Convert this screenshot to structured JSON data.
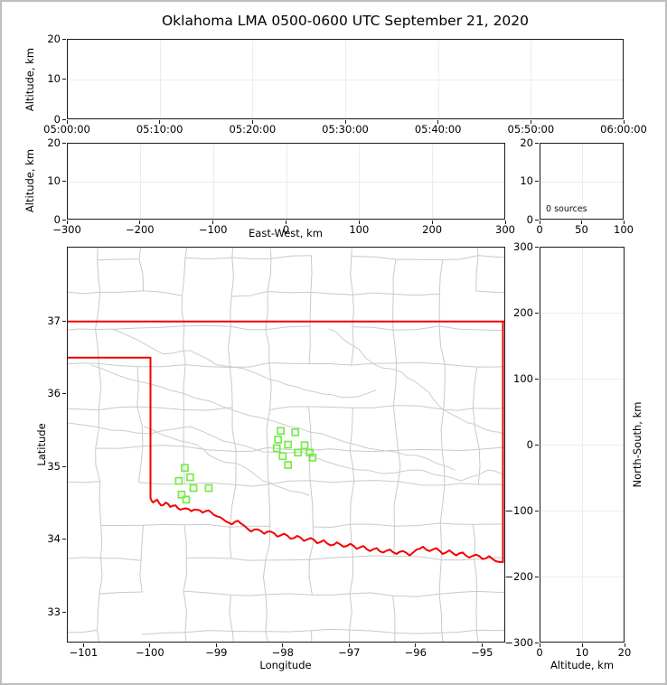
{
  "title": "Oklahoma LMA 0500-0600 UTC September 21, 2020",
  "colors": {
    "station_green": "#74ec45",
    "state_border_red": "#f10000",
    "county_gray": "#c9c9c9",
    "river_gray": "#cccccc",
    "gridline_gray": "#ececec",
    "frame_gray": "#bfbfbf"
  },
  "panels": {
    "time_height": {
      "ylabel": "Altitude, km",
      "yticks": [
        "20",
        "10",
        "0"
      ],
      "xticks": [
        "05:00:00",
        "05:10:00",
        "05:20:00",
        "05:30:00",
        "05:40:00",
        "05:50:00",
        "06:00:00"
      ]
    },
    "ew_height": {
      "ylabel": "Altitude, km",
      "xlabel": "East-West, km",
      "yticks": [
        "20",
        "10",
        "0"
      ],
      "xticks": [
        "−300",
        "−200",
        "−100",
        "0",
        "100",
        "200",
        "300"
      ]
    },
    "sources": {
      "yticks": [
        "20",
        "10",
        "0"
      ],
      "xticks": [
        "0",
        "50",
        "100"
      ],
      "annotation": "0 sources"
    },
    "plan": {
      "ylabel": "Latitude",
      "xlabel": "Longitude",
      "yticks": [
        "37",
        "36",
        "35",
        "34",
        "33"
      ],
      "xticks": [
        "−101",
        "−100",
        "−99",
        "−98",
        "−97",
        "−96",
        "−95"
      ]
    },
    "ns_height": {
      "xlabel": "Altitude, km",
      "ylabel_right": "North-South, km",
      "yticks": [
        "300",
        "200",
        "100",
        "0",
        "−100",
        "−200",
        "−300"
      ],
      "xticks": [
        "0",
        "10",
        "20"
      ]
    }
  },
  "chart_data": [
    {
      "id": "altitude-vs-time",
      "type": "scatter",
      "ylabel": "Altitude, km",
      "xlim": [
        "05:00:00",
        "06:00:00"
      ],
      "ylim": [
        0,
        20
      ],
      "xtick_values": [
        "05:00:00",
        "05:10:00",
        "05:20:00",
        "05:30:00",
        "05:40:00",
        "05:50:00",
        "06:00:00"
      ],
      "ytick_values": [
        0,
        10,
        20
      ],
      "points": [],
      "grid": true
    },
    {
      "id": "altitude-vs-east-west",
      "type": "scatter",
      "xlabel": "East-West, km",
      "ylabel": "Altitude, km",
      "xlim": [
        -300,
        300
      ],
      "ylim": [
        0,
        20
      ],
      "xtick_values": [
        -300,
        -200,
        -100,
        0,
        100,
        200,
        300
      ],
      "ytick_values": [
        0,
        10,
        20
      ],
      "points": [],
      "grid": true
    },
    {
      "id": "source-count-panel",
      "type": "scatter",
      "xlim": [
        0,
        100
      ],
      "ylim": [
        0,
        20
      ],
      "xtick_values": [
        0,
        50,
        100
      ],
      "ytick_values": [
        0,
        10,
        20
      ],
      "annotation": "0 sources",
      "points": [],
      "grid": true
    },
    {
      "id": "plan-view-map",
      "type": "scatter",
      "xlabel": "Longitude",
      "ylabel": "Latitude",
      "xlim": [
        -101.25,
        -94.65
      ],
      "ylim": [
        32.58,
        38.02
      ],
      "xtick_values": [
        -101,
        -100,
        -99,
        -98,
        -97,
        -96,
        -95
      ],
      "ytick_values": [
        33,
        34,
        35,
        36,
        37
      ],
      "grid": false,
      "stations_lon_lat": [
        [
          -98.03,
          35.49
        ],
        [
          -97.81,
          35.47
        ],
        [
          -98.07,
          35.37
        ],
        [
          -97.92,
          35.3
        ],
        [
          -98.09,
          35.25
        ],
        [
          -97.67,
          35.29
        ],
        [
          -97.77,
          35.19
        ],
        [
          -97.59,
          35.19
        ],
        [
          -98.0,
          35.14
        ],
        [
          -97.55,
          35.12
        ],
        [
          -97.92,
          35.02
        ],
        [
          -99.48,
          34.98
        ],
        [
          -99.4,
          34.85
        ],
        [
          -99.57,
          34.8
        ],
        [
          -99.35,
          34.7
        ],
        [
          -99.12,
          34.7
        ],
        [
          -99.53,
          34.61
        ],
        [
          -99.46,
          34.54
        ]
      ],
      "oklahoma_border": {
        "north_border": [
          [
            -101.25,
            37.0
          ],
          [
            -94.65,
            37.0
          ]
        ],
        "east_clip_edge": [
          [
            -94.67,
            37.0
          ],
          [
            -94.67,
            33.68
          ]
        ],
        "panhandle": [
          [
            -101.25,
            36.5
          ],
          [
            -100.0,
            36.5
          ],
          [
            -100.0,
            34.56
          ]
        ],
        "red_river": [
          [
            -100.0,
            34.56
          ],
          [
            -99.96,
            34.5
          ],
          [
            -99.9,
            34.54
          ],
          [
            -99.84,
            34.46
          ],
          [
            -99.77,
            34.5
          ],
          [
            -99.7,
            34.44
          ],
          [
            -99.62,
            34.46
          ],
          [
            -99.55,
            34.4
          ],
          [
            -99.47,
            34.42
          ],
          [
            -99.38,
            34.38
          ],
          [
            -99.3,
            34.4
          ],
          [
            -99.21,
            34.36
          ],
          [
            -99.12,
            34.39
          ],
          [
            -99.04,
            34.33
          ],
          [
            -98.95,
            34.3
          ],
          [
            -98.86,
            34.24
          ],
          [
            -98.77,
            34.2
          ],
          [
            -98.68,
            34.25
          ],
          [
            -98.58,
            34.18
          ],
          [
            -98.48,
            34.1
          ],
          [
            -98.38,
            34.13
          ],
          [
            -98.28,
            34.07
          ],
          [
            -98.18,
            34.1
          ],
          [
            -98.08,
            34.03
          ],
          [
            -97.98,
            34.07
          ],
          [
            -97.88,
            34.0
          ],
          [
            -97.78,
            34.04
          ],
          [
            -97.68,
            33.97
          ],
          [
            -97.58,
            34.01
          ],
          [
            -97.48,
            33.94
          ],
          [
            -97.38,
            33.98
          ],
          [
            -97.28,
            33.91
          ],
          [
            -97.18,
            33.95
          ],
          [
            -97.08,
            33.89
          ],
          [
            -96.98,
            33.93
          ],
          [
            -96.88,
            33.86
          ],
          [
            -96.78,
            33.9
          ],
          [
            -96.68,
            33.83
          ],
          [
            -96.58,
            33.87
          ],
          [
            -96.48,
            33.81
          ],
          [
            -96.38,
            33.85
          ],
          [
            -96.28,
            33.79
          ],
          [
            -96.18,
            33.83
          ],
          [
            -96.08,
            33.77
          ],
          [
            -95.98,
            33.85
          ],
          [
            -95.88,
            33.89
          ],
          [
            -95.78,
            33.83
          ],
          [
            -95.68,
            33.87
          ],
          [
            -95.58,
            33.79
          ],
          [
            -95.48,
            33.84
          ],
          [
            -95.38,
            33.77
          ],
          [
            -95.28,
            33.81
          ],
          [
            -95.18,
            33.74
          ],
          [
            -95.08,
            33.78
          ],
          [
            -94.98,
            33.72
          ],
          [
            -94.88,
            33.76
          ],
          [
            -94.78,
            33.69
          ],
          [
            -94.67,
            33.68
          ]
        ]
      },
      "rivers": [
        [
          [
            -100.6,
            36.9
          ],
          [
            -100.2,
            36.75
          ],
          [
            -99.8,
            36.55
          ],
          [
            -99.4,
            36.6
          ],
          [
            -99.0,
            36.4
          ],
          [
            -98.6,
            36.35
          ],
          [
            -98.2,
            36.2
          ],
          [
            -97.8,
            36.1
          ],
          [
            -97.4,
            36.0
          ],
          [
            -97.0,
            35.95
          ],
          [
            -96.6,
            36.05
          ]
        ],
        [
          [
            -97.3,
            36.9
          ],
          [
            -97.0,
            36.7
          ],
          [
            -96.6,
            36.4
          ],
          [
            -96.2,
            36.3
          ],
          [
            -95.9,
            36.1
          ],
          [
            -95.6,
            35.8
          ],
          [
            -95.2,
            35.6
          ],
          [
            -94.9,
            35.5
          ],
          [
            -94.65,
            35.45
          ]
        ],
        [
          [
            -101.25,
            35.6
          ],
          [
            -100.6,
            35.5
          ],
          [
            -100.0,
            35.45
          ],
          [
            -99.4,
            35.55
          ],
          [
            -98.9,
            35.35
          ],
          [
            -98.3,
            35.2
          ],
          [
            -97.7,
            35.2
          ],
          [
            -97.1,
            35.0
          ],
          [
            -96.5,
            34.9
          ],
          [
            -95.9,
            34.95
          ],
          [
            -95.3,
            34.8
          ],
          [
            -94.9,
            34.95
          ],
          [
            -94.65,
            34.88
          ]
        ],
        [
          [
            -100.1,
            35.55
          ],
          [
            -99.7,
            35.4
          ],
          [
            -99.3,
            35.3
          ],
          [
            -99.0,
            35.1
          ],
          [
            -98.6,
            35.0
          ],
          [
            -98.3,
            34.8
          ],
          [
            -98.0,
            34.7
          ],
          [
            -97.6,
            34.6
          ]
        ],
        [
          [
            -100.9,
            36.4
          ],
          [
            -100.3,
            36.2
          ],
          [
            -99.7,
            36.05
          ],
          [
            -99.1,
            35.9
          ],
          [
            -98.5,
            35.7
          ],
          [
            -97.9,
            35.55
          ],
          [
            -97.4,
            35.45
          ],
          [
            -96.9,
            35.3
          ],
          [
            -96.3,
            35.2
          ],
          [
            -95.8,
            35.1
          ],
          [
            -95.4,
            34.95
          ]
        ]
      ],
      "counties_schematic": {
        "seed": 12345,
        "col_step_deg": 0.62,
        "row_step_deg": 0.5
      }
    },
    {
      "id": "north-south-vs-altitude",
      "type": "scatter",
      "xlabel": "Altitude, km",
      "ylabel": "North-South, km",
      "xlim": [
        0,
        20
      ],
      "ylim": [
        -300,
        300
      ],
      "xtick_values": [
        0,
        10,
        20
      ],
      "ytick_values": [
        -300,
        -200,
        -100,
        0,
        100,
        200,
        300
      ],
      "points": [],
      "grid": true
    }
  ]
}
